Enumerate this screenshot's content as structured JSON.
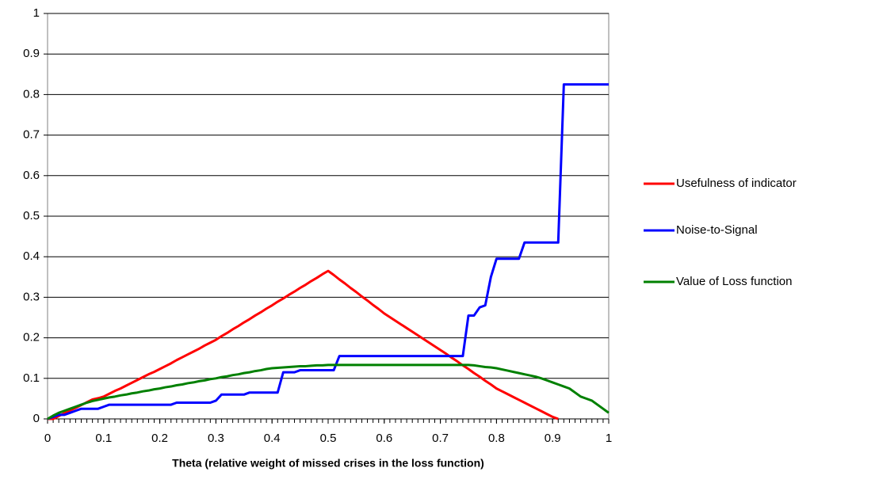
{
  "chart_data": {
    "type": "line",
    "x_label": "Theta (relative weight of missed crises in the loss function)",
    "x": [
      0,
      0.01,
      0.02,
      0.03,
      0.04,
      0.05,
      0.06,
      0.07,
      0.08,
      0.09,
      0.1,
      0.11,
      0.12,
      0.13,
      0.14,
      0.15,
      0.16,
      0.17,
      0.18,
      0.19,
      0.2,
      0.21,
      0.22,
      0.23,
      0.24,
      0.25,
      0.26,
      0.27,
      0.28,
      0.29,
      0.3,
      0.31,
      0.32,
      0.33,
      0.34,
      0.35,
      0.36,
      0.37,
      0.38,
      0.39,
      0.4,
      0.41,
      0.42,
      0.43,
      0.44,
      0.45,
      0.46,
      0.47,
      0.48,
      0.49,
      0.5,
      0.51,
      0.52,
      0.53,
      0.54,
      0.55,
      0.56,
      0.57,
      0.58,
      0.59,
      0.6,
      0.61,
      0.62,
      0.63,
      0.64,
      0.65,
      0.66,
      0.67,
      0.68,
      0.69,
      0.7,
      0.71,
      0.72,
      0.73,
      0.74,
      0.75,
      0.76,
      0.77,
      0.78,
      0.79,
      0.8,
      0.81,
      0.82,
      0.83,
      0.84,
      0.85,
      0.86,
      0.87,
      0.88,
      0.89,
      0.9,
      0.91,
      0.92,
      0.93,
      0.94,
      0.95,
      0.96,
      0.97,
      0.98,
      0.99,
      1
    ],
    "series": [
      {
        "name": "Usefulness of indicator",
        "color": "#ff0000",
        "values": [
          0,
          0,
          0.007,
          0.014,
          0.021,
          0.027,
          0.034,
          0.041,
          0.048,
          0.051,
          0.055,
          0.062,
          0.069,
          0.075,
          0.082,
          0.089,
          0.096,
          0.103,
          0.11,
          0.116,
          0.123,
          0.13,
          0.137,
          0.145,
          0.152,
          0.159,
          0.166,
          0.173,
          0.181,
          0.188,
          0.195,
          0.204,
          0.212,
          0.221,
          0.229,
          0.238,
          0.246,
          0.255,
          0.263,
          0.272,
          0.28,
          0.289,
          0.297,
          0.306,
          0.314,
          0.323,
          0.331,
          0.34,
          0.348,
          0.357,
          0.365,
          0.355,
          0.344,
          0.334,
          0.323,
          0.313,
          0.302,
          0.292,
          0.281,
          0.271,
          0.26,
          0.251,
          0.242,
          0.233,
          0.224,
          0.215,
          0.206,
          0.197,
          0.188,
          0.179,
          0.17,
          0.161,
          0.151,
          0.142,
          0.132,
          0.123,
          0.113,
          0.104,
          0.094,
          0.085,
          0.075,
          0.068,
          0.061,
          0.054,
          0.047,
          0.04,
          0.033,
          0.026,
          0.019,
          0.012,
          0.005,
          0,
          null,
          null,
          null,
          null,
          null,
          null,
          null,
          null,
          null
        ]
      },
      {
        "name": "Noise-to-Signal",
        "color": "#0000ff",
        "values": [
          0,
          0.005,
          0.01,
          0.01,
          0.015,
          0.02,
          0.025,
          0.025,
          0.025,
          0.025,
          0.03,
          0.035,
          0.035,
          0.035,
          0.035,
          0.035,
          0.035,
          0.035,
          0.035,
          0.035,
          0.035,
          0.035,
          0.035,
          0.04,
          0.04,
          0.04,
          0.04,
          0.04,
          0.04,
          0.04,
          0.045,
          0.06,
          0.06,
          0.06,
          0.06,
          0.06,
          0.065,
          0.065,
          0.065,
          0.065,
          0.065,
          0.065,
          0.115,
          0.115,
          0.115,
          0.12,
          0.12,
          0.12,
          0.12,
          0.12,
          0.12,
          0.12,
          0.155,
          0.155,
          0.155,
          0.155,
          0.155,
          0.155,
          0.155,
          0.155,
          0.155,
          0.155,
          0.155,
          0.155,
          0.155,
          0.155,
          0.155,
          0.155,
          0.155,
          0.155,
          0.155,
          0.155,
          0.155,
          0.155,
          0.155,
          0.255,
          0.255,
          0.275,
          0.28,
          0.35,
          0.395,
          0.395,
          0.395,
          0.395,
          0.395,
          0.435,
          0.435,
          0.435,
          0.435,
          0.435,
          0.435,
          0.435,
          0.825,
          0.825,
          0.825,
          0.825,
          0.825,
          0.825,
          0.825,
          0.825,
          0.825
        ]
      },
      {
        "name": "Value of Loss function",
        "color": "#008000",
        "values": [
          0,
          0.008,
          0.015,
          0.02,
          0.025,
          0.03,
          0.035,
          0.04,
          0.044,
          0.047,
          0.05,
          0.053,
          0.055,
          0.058,
          0.06,
          0.063,
          0.065,
          0.068,
          0.07,
          0.073,
          0.075,
          0.078,
          0.08,
          0.083,
          0.085,
          0.088,
          0.09,
          0.093,
          0.095,
          0.098,
          0.1,
          0.103,
          0.105,
          0.108,
          0.11,
          0.113,
          0.115,
          0.118,
          0.12,
          0.123,
          0.125,
          0.126,
          0.127,
          0.128,
          0.129,
          0.13,
          0.13,
          0.131,
          0.132,
          0.132,
          0.133,
          0.133,
          0.133,
          0.133,
          0.133,
          0.133,
          0.133,
          0.133,
          0.133,
          0.133,
          0.133,
          0.133,
          0.133,
          0.133,
          0.133,
          0.133,
          0.133,
          0.133,
          0.133,
          0.133,
          0.133,
          0.133,
          0.133,
          0.133,
          0.133,
          0.133,
          0.132,
          0.13,
          0.128,
          0.127,
          0.125,
          0.122,
          0.119,
          0.116,
          0.113,
          0.11,
          0.107,
          0.104,
          0.1,
          0.095,
          0.09,
          0.085,
          0.08,
          0.075,
          0.065,
          0.055,
          0.05,
          0.045,
          0.035,
          0.025,
          0.015
        ]
      }
    ],
    "xlim": [
      0,
      1
    ],
    "xticks": [
      0,
      0.1,
      0.2,
      0.3,
      0.4,
      0.5,
      0.6,
      0.7,
      0.8,
      0.9,
      1
    ],
    "ylim": [
      0,
      1
    ],
    "yticks": [
      0,
      0.1,
      0.2,
      0.3,
      0.4,
      0.5,
      0.6,
      0.7,
      0.8,
      0.9,
      1
    ],
    "grid": true,
    "legend": "right"
  }
}
